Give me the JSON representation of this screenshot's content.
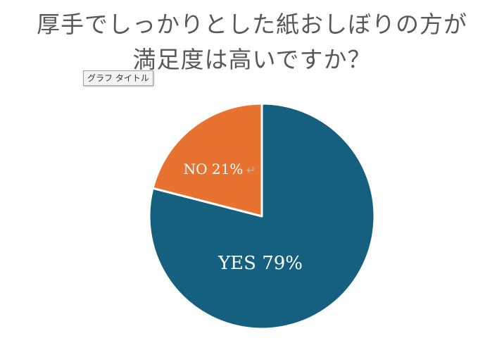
{
  "tooltip_text": "グラフ タイトル",
  "chart_data": {
    "type": "pie",
    "title_lines": [
      "厚手でしっかりとした紙おしぼりの方が",
      "満足度は高いですか？"
    ],
    "categories": [
      "YES",
      "NO"
    ],
    "values": [
      79,
      21
    ],
    "labels": [
      "YES 79%",
      "NO 21%"
    ],
    "colors": [
      "#16607f",
      "#e8722f"
    ],
    "legend": "none"
  }
}
